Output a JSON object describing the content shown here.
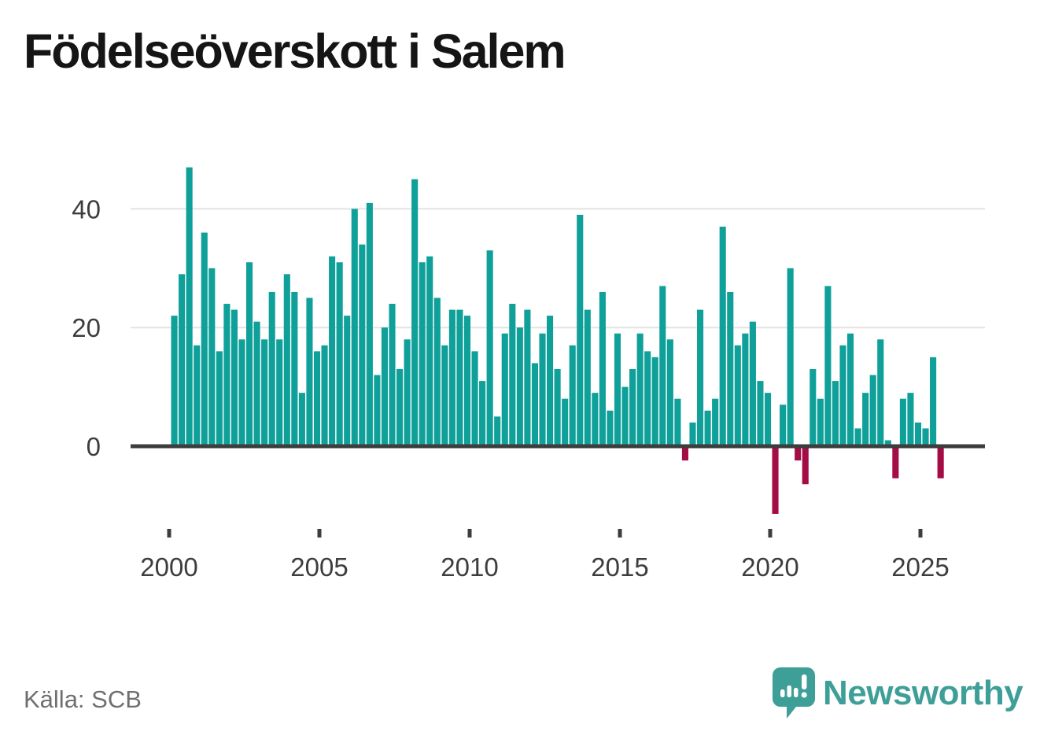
{
  "title": "Födelseöverskott i Salem",
  "source": "Källa: SCB",
  "brand": {
    "name": "Newsworthy",
    "icon": "speech-bubble-chart-icon"
  },
  "colors": {
    "bar_positive": "#0FA099",
    "bar_negative": "#A30C45",
    "axis": "#3D3D3D",
    "gridline": "#E3E3E3",
    "tick_label": "#3D3D3D",
    "title_text": "#151515",
    "source_text": "#6F6F6F",
    "brand_teal": "#3E9F99"
  },
  "chart_data": {
    "type": "bar",
    "title": "Födelseöverskott i Salem",
    "frequency": "quarterly",
    "x_start": "2000 Q1",
    "x_end": "2025 Q3",
    "values": [
      22,
      29,
      47,
      17,
      36,
      30,
      16,
      24,
      23,
      18,
      31,
      21,
      18,
      26,
      18,
      29,
      26,
      9,
      25,
      16,
      17,
      32,
      31,
      22,
      40,
      34,
      41,
      12,
      20,
      24,
      13,
      18,
      45,
      31,
      32,
      25,
      17,
      23,
      23,
      22,
      16,
      11,
      33,
      5,
      19,
      24,
      20,
      23,
      14,
      19,
      22,
      13,
      8,
      17,
      39,
      23,
      9,
      26,
      6,
      19,
      10,
      13,
      19,
      16,
      15,
      27,
      18,
      8,
      -2,
      4,
      23,
      6,
      8,
      37,
      26,
      17,
      19,
      21,
      11,
      9,
      -11,
      7,
      30,
      -2,
      -6,
      13,
      8,
      27,
      11,
      17,
      19,
      3,
      9,
      12,
      18,
      1,
      -5,
      8,
      9,
      4,
      3,
      15,
      -5
    ],
    "x_tick_labels": [
      "2000",
      "2005",
      "2010",
      "2015",
      "2020",
      "2025"
    ],
    "x_tick_every_n_bars": 20,
    "y_ticks": [
      0,
      20,
      40
    ],
    "ylim": [
      -12,
      48
    ],
    "grid": "horizontal-only",
    "legend": "none"
  }
}
